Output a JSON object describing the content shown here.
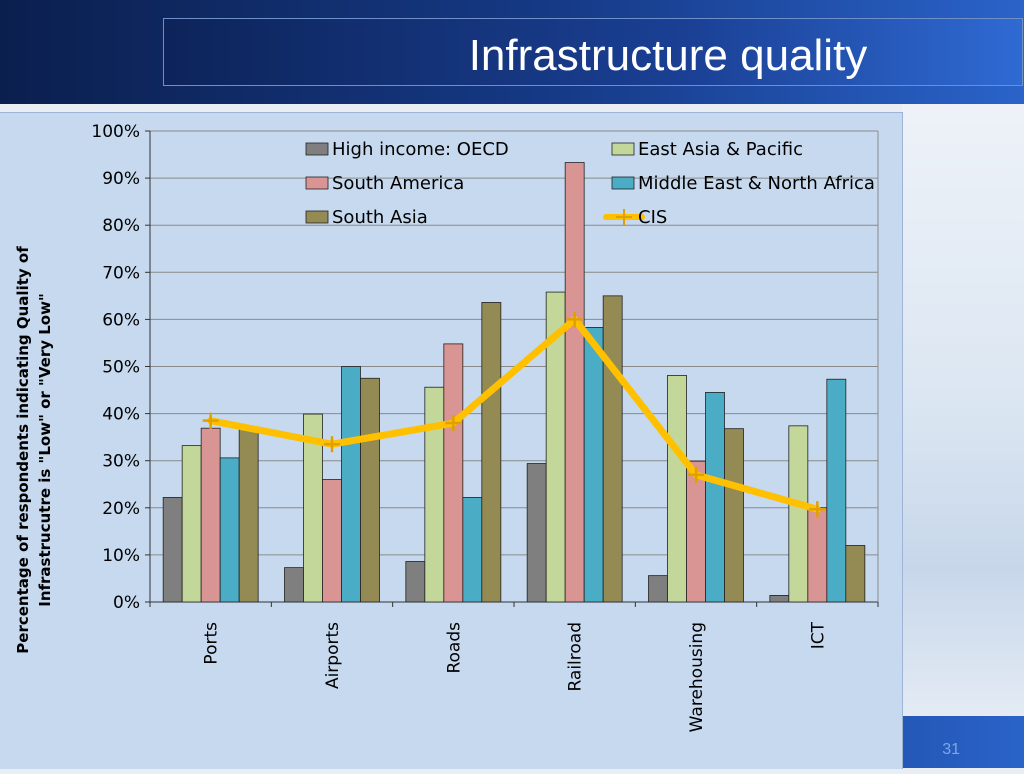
{
  "slide": {
    "title": "Infrastructure quality",
    "page_number": "31"
  },
  "colors": {
    "plot_bg": "#c6d9ef",
    "grid": "#8a8a8a",
    "high_income_oecd": "#7f7f7f",
    "east_asia_pacific": "#c4d79b",
    "south_america": "#d99594",
    "middle_east_north_africa": "#4bacc6",
    "south_asia": "#948a54",
    "cis": "#ffc000"
  },
  "chart_data": {
    "type": "bar",
    "title": "",
    "xlabel": "",
    "ylabel": "Percentage of respondents indicating Quality of Infrastrucutre is \"Low\" or \"Very Low\"",
    "ylabel_lines": [
      "Percentage of respondents indicating Quality of",
      "Infrastrucutre is \"Low\" or \"Very Low\""
    ],
    "ylim": [
      0,
      100
    ],
    "yticks": [
      0,
      10,
      20,
      30,
      40,
      50,
      60,
      70,
      80,
      90,
      100
    ],
    "ytick_labels": [
      "0%",
      "10%",
      "20%",
      "30%",
      "40%",
      "50%",
      "60%",
      "70%",
      "80%",
      "90%",
      "100%"
    ],
    "grid": true,
    "legend_position": "top",
    "categories": [
      "Ports",
      "Airports",
      "Roads",
      "Railroad",
      "Warehousing",
      "ICT"
    ],
    "series": [
      {
        "name": "High income: OECD",
        "kind": "bar",
        "color": "#7f7f7f",
        "values": [
          22.2,
          7.3,
          8.6,
          29.4,
          5.6,
          1.4
        ]
      },
      {
        "name": "East Asia & Pacific",
        "kind": "bar",
        "color": "#c4d79b",
        "values": [
          33.2,
          39.9,
          45.6,
          65.8,
          48.1,
          37.4
        ]
      },
      {
        "name": "South America",
        "kind": "bar",
        "color": "#d99594",
        "values": [
          36.9,
          26.0,
          54.8,
          93.3,
          29.9,
          20.0
        ]
      },
      {
        "name": "Middle East & North Africa",
        "kind": "bar",
        "color": "#4bacc6",
        "values": [
          30.6,
          50.0,
          22.2,
          58.3,
          44.5,
          47.3
        ]
      },
      {
        "name": "South Asia",
        "kind": "bar",
        "color": "#948a54",
        "values": [
          36.8,
          47.5,
          63.6,
          65.0,
          36.8,
          12.0
        ]
      },
      {
        "name": "CIS",
        "kind": "line",
        "color": "#ffc000",
        "values": [
          38.5,
          33.5,
          38.0,
          60.0,
          27.0,
          19.7
        ]
      }
    ]
  }
}
